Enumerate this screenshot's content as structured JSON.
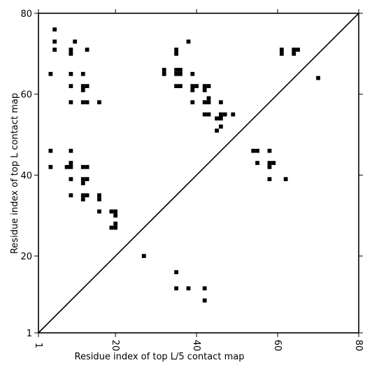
{
  "chart_data": {
    "type": "scatter",
    "title": "",
    "xlabel": "Residue index of top L/5 contact map",
    "ylabel": "Residue index of top L contact map",
    "xlim": [
      1,
      80
    ],
    "ylim": [
      1,
      80
    ],
    "x_ticks": [
      1,
      20,
      40,
      60,
      80
    ],
    "y_ticks": [
      1,
      20,
      40,
      60,
      80
    ],
    "x_tick_labels": [
      "1",
      "20",
      "40",
      "60",
      "80"
    ],
    "y_tick_labels": [
      "1",
      "20",
      "40",
      "60",
      "80"
    ],
    "x_tick_rotation": -90,
    "diagonal": true,
    "grid": false,
    "marker_color": "#000000",
    "series": [
      {
        "points": [
          [
            5,
            76
          ],
          [
            5,
            73
          ],
          [
            5,
            71
          ],
          [
            9,
            71
          ],
          [
            9,
            70
          ],
          [
            10,
            73
          ],
          [
            13,
            71
          ],
          [
            4,
            65
          ],
          [
            9,
            65
          ],
          [
            12,
            65
          ],
          [
            9,
            62
          ],
          [
            12,
            62
          ],
          [
            12,
            61
          ],
          [
            13,
            62
          ],
          [
            9,
            58
          ],
          [
            12,
            58
          ],
          [
            13,
            58
          ],
          [
            16,
            58
          ],
          [
            4,
            46
          ],
          [
            9,
            46
          ],
          [
            4,
            42
          ],
          [
            8,
            42
          ],
          [
            9,
            42
          ],
          [
            9,
            43
          ],
          [
            12,
            42
          ],
          [
            13,
            42
          ],
          [
            9,
            39
          ],
          [
            12,
            39
          ],
          [
            13,
            39
          ],
          [
            12,
            38
          ],
          [
            9,
            35
          ],
          [
            12,
            35
          ],
          [
            13,
            35
          ],
          [
            16,
            35
          ],
          [
            12,
            34
          ],
          [
            16,
            34
          ],
          [
            16,
            31
          ],
          [
            19,
            31
          ],
          [
            20,
            31
          ],
          [
            20,
            30
          ],
          [
            19,
            27
          ],
          [
            20,
            27
          ],
          [
            20,
            28
          ],
          [
            27,
            20
          ],
          [
            32,
            66
          ],
          [
            32,
            65
          ],
          [
            35,
            71
          ],
          [
            35,
            70
          ],
          [
            35,
            66
          ],
          [
            36,
            66
          ],
          [
            35,
            65
          ],
          [
            36,
            65
          ],
          [
            38,
            73
          ],
          [
            39,
            65
          ],
          [
            35,
            62
          ],
          [
            36,
            62
          ],
          [
            39,
            62
          ],
          [
            40,
            62
          ],
          [
            39,
            61
          ],
          [
            42,
            62
          ],
          [
            43,
            62
          ],
          [
            42,
            61
          ],
          [
            39,
            58
          ],
          [
            42,
            58
          ],
          [
            43,
            58
          ],
          [
            43,
            59
          ],
          [
            46,
            58
          ],
          [
            42,
            55
          ],
          [
            43,
            55
          ],
          [
            45,
            54
          ],
          [
            46,
            54
          ],
          [
            46,
            55
          ],
          [
            47,
            55
          ],
          [
            49,
            55
          ],
          [
            46,
            52
          ],
          [
            45,
            51
          ],
          [
            35,
            16
          ],
          [
            35,
            12
          ],
          [
            38,
            12
          ],
          [
            42,
            12
          ],
          [
            42,
            9
          ],
          [
            54,
            46
          ],
          [
            55,
            46
          ],
          [
            58,
            46
          ],
          [
            55,
            43
          ],
          [
            58,
            43
          ],
          [
            59,
            43
          ],
          [
            58,
            42
          ],
          [
            58,
            39
          ],
          [
            62,
            39
          ],
          [
            61,
            71
          ],
          [
            61,
            70
          ],
          [
            64,
            71
          ],
          [
            65,
            71
          ],
          [
            64,
            70
          ],
          [
            70,
            64
          ]
        ]
      }
    ]
  }
}
